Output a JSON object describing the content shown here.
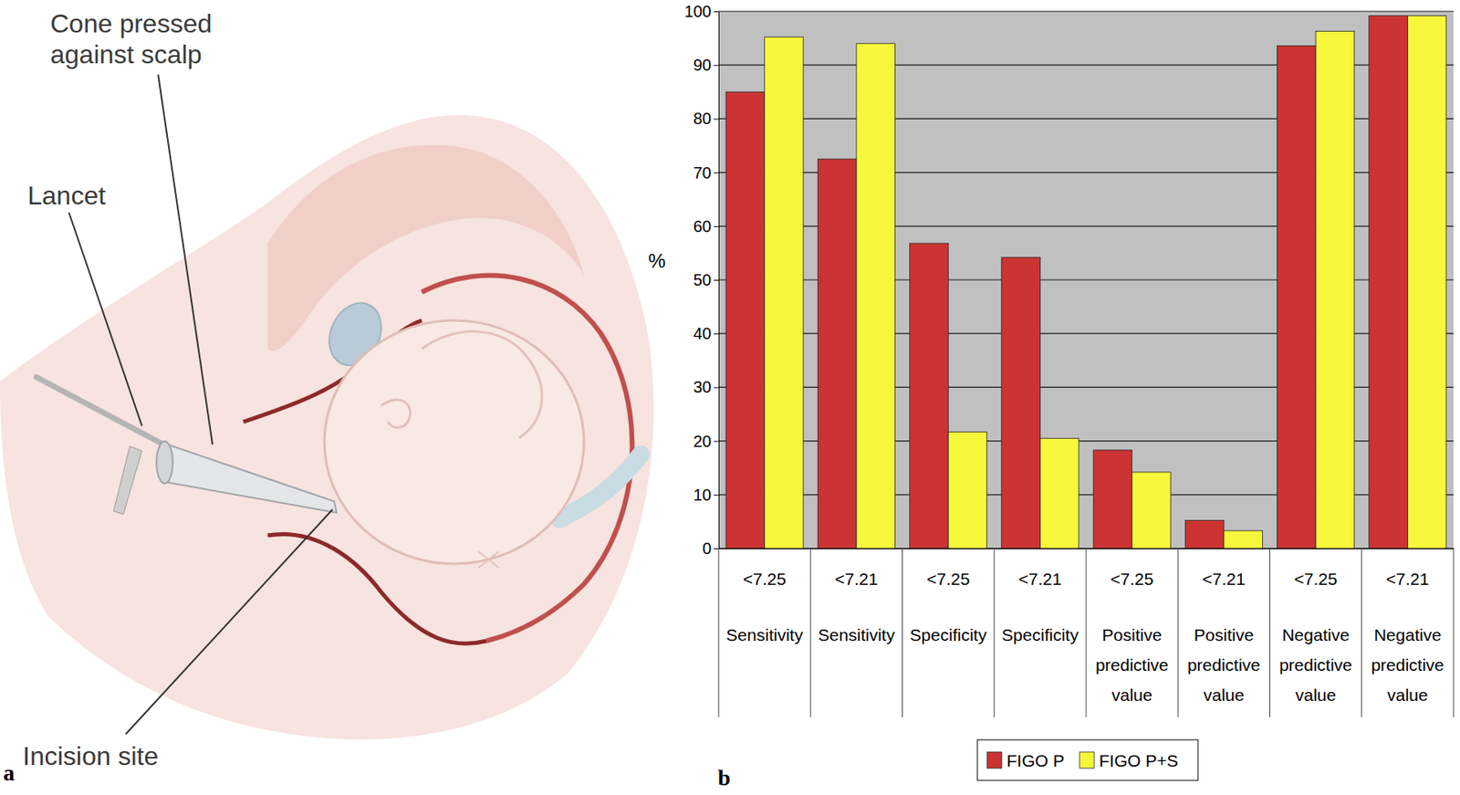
{
  "chart_data": {
    "type": "bar",
    "categories": [
      "<7.25",
      "<7.21",
      "<7.25",
      "<7.21",
      "<7.25",
      "<7.21",
      "<7.25",
      "<7.21"
    ],
    "category_groups": [
      "Sensitivity",
      "Sensitivity",
      "Specificity",
      "Specificity",
      "Positive predictive value",
      "Positive predictive value",
      "Negative predictive value",
      "Negative predictive value"
    ],
    "series": [
      {
        "name": "FIGO P",
        "color": "#cc3333",
        "values": [
          85,
          72.5,
          56.8,
          54.2,
          18.3,
          5.2,
          93.6,
          99.2
        ]
      },
      {
        "name": "FIGO P+S",
        "color": "#f7f73c",
        "values": [
          95.2,
          94,
          21.7,
          20.5,
          14.2,
          3.3,
          96.3,
          99.2
        ]
      }
    ],
    "y_label": "%",
    "panel_label": "b",
    "ylim": [
      0,
      100
    ],
    "yticks": [
      0,
      10,
      20,
      30,
      40,
      50,
      60,
      70,
      80,
      90,
      100
    ],
    "grid": true,
    "legend": "bottom"
  },
  "illustration": {
    "panel_label": "a",
    "labels": {
      "cone": [
        "Cone pressed",
        "against scalp"
      ],
      "lancet": [
        "Lancet"
      ],
      "incision": [
        "Incision site"
      ]
    }
  }
}
